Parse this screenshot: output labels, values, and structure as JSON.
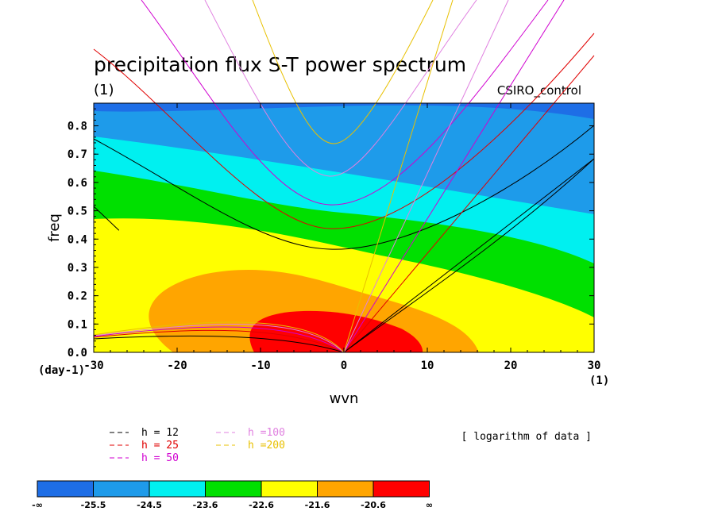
{
  "chart_data": {
    "type": "heatmap",
    "title": "precipitation flux S-T power spectrum",
    "subtitle": "(1)",
    "model_label": "CSIRO_control",
    "xlabel": "wvn",
    "ylabel": "freq",
    "x_unit_label": "(1)",
    "y_unit_label": "(day-1)",
    "xlim": [
      -30,
      30
    ],
    "ylim": [
      0.0,
      0.88
    ],
    "x_ticks": [
      "-30",
      "-20",
      "-10",
      "0",
      "10",
      "20",
      "30"
    ],
    "y_ticks": [
      "0.0",
      "0.1",
      "0.2",
      "0.3",
      "0.4",
      "0.5",
      "0.6",
      "0.7",
      "0.8"
    ],
    "note": "[ logarithm of data ]",
    "colorbar": {
      "labels": [
        "-∞",
        "-25.5",
        "-24.5",
        "-23.6",
        "-22.6",
        "-21.6",
        "-20.6",
        "∞"
      ],
      "colors": [
        "#1e6ee6",
        "#1e9bea",
        "#00f0f0",
        "#00e000",
        "#ffff00",
        "#ffa500",
        "#ff0000"
      ]
    },
    "series": [
      {
        "name": "h = 12",
        "color": "#000000"
      },
      {
        "name": "h = 25",
        "color": "#e00000"
      },
      {
        "name": "h = 50",
        "color": "#d000d0"
      },
      {
        "name": "h =100",
        "color": "#e080e0"
      },
      {
        "name": "h =200",
        "color": "#e8c000"
      }
    ],
    "legend_position": "bottom-left"
  }
}
